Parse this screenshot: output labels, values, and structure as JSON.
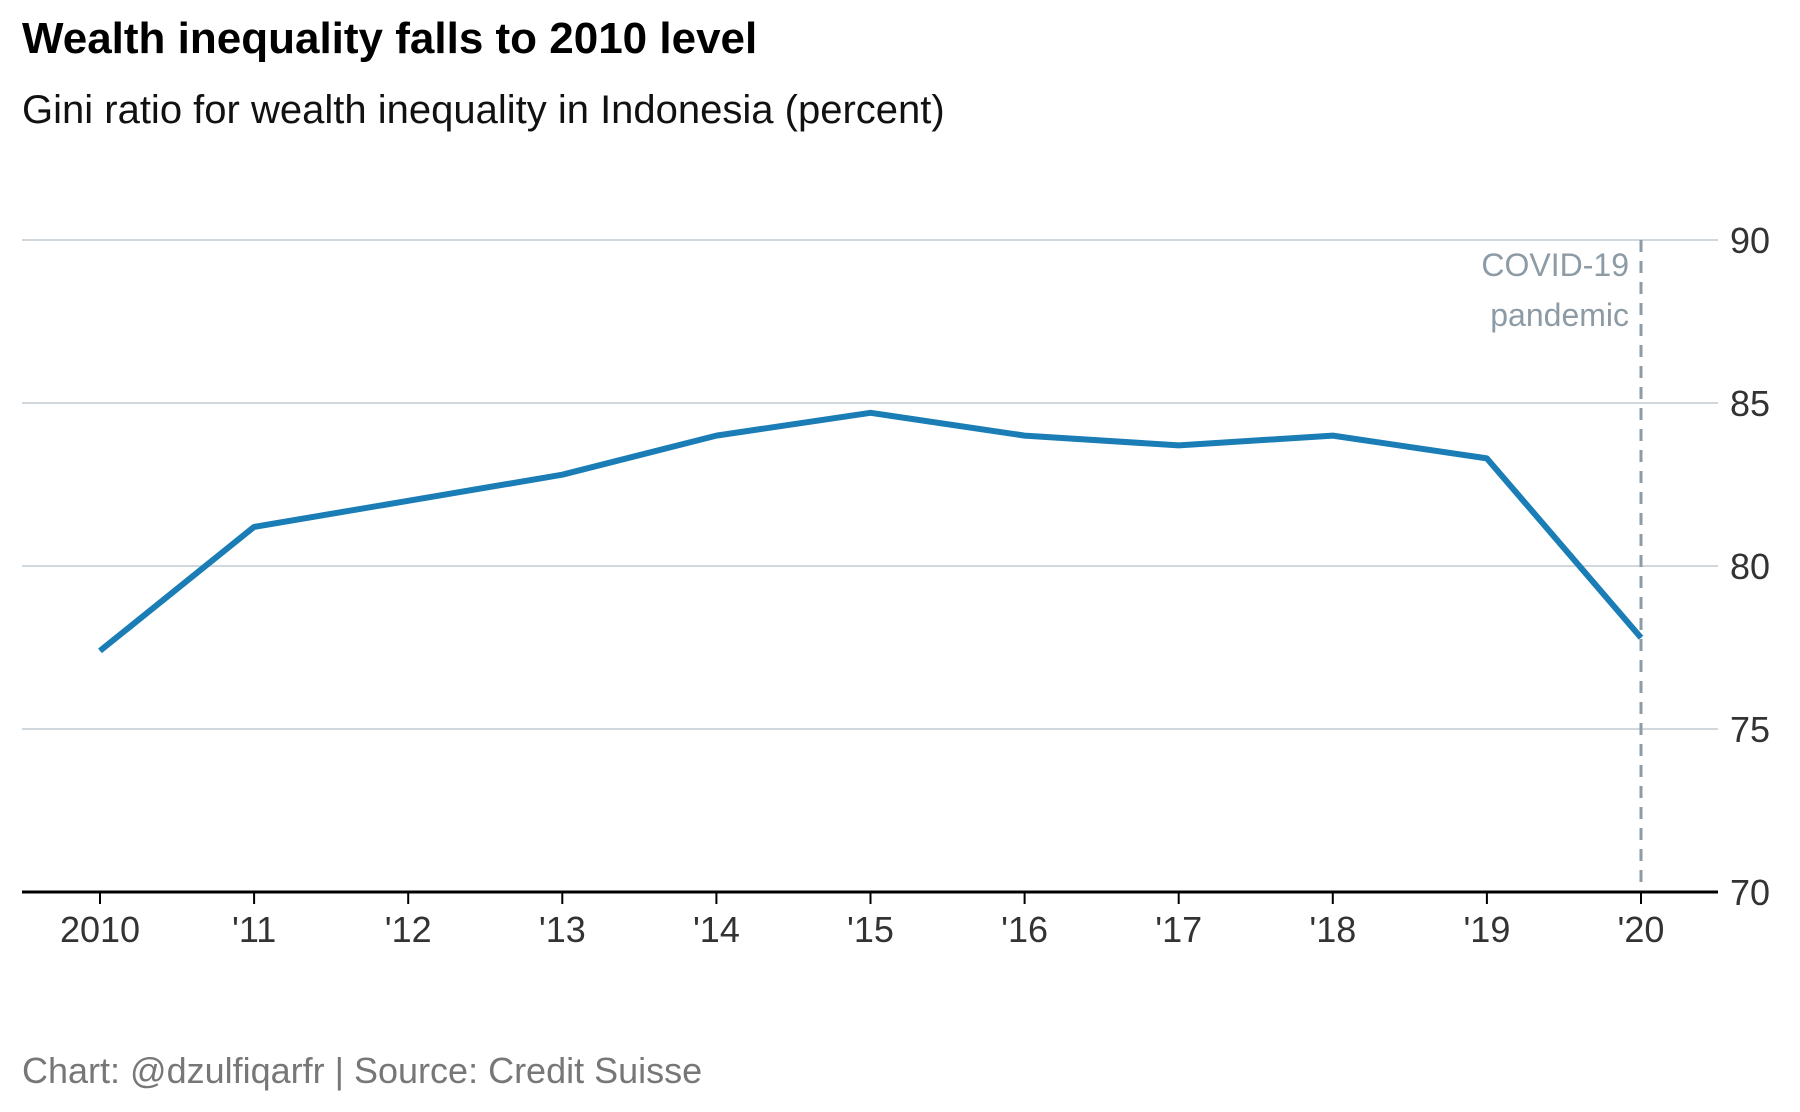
{
  "title": "Wealth inequality falls to 2010 level",
  "subtitle": "Gini ratio for wealth inequality in Indonesia (percent)",
  "caption": "Chart: @dzulfiqarfr | Source: Credit Suisse",
  "colors": {
    "line": "#1a7db6",
    "grid": "#d0d8de",
    "axis": "#000000",
    "tick_text": "#333333",
    "annotation": "#8c9ba5",
    "caption": "#777777"
  },
  "chart_data": {
    "type": "line",
    "title": "Wealth inequality falls to 2010 level",
    "subtitle": "Gini ratio for wealth inequality in Indonesia (percent)",
    "x": [
      2010,
      2011,
      2012,
      2013,
      2014,
      2015,
      2016,
      2017,
      2018,
      2019,
      2020
    ],
    "x_tick_labels": [
      "2010",
      "'11",
      "'12",
      "'13",
      "'14",
      "'15",
      "'16",
      "'17",
      "'18",
      "'19",
      "'20"
    ],
    "series": [
      {
        "values": [
          77.4,
          81.2,
          82.0,
          82.8,
          84.0,
          84.7,
          84.0,
          83.7,
          84.0,
          83.3,
          77.8
        ]
      }
    ],
    "ylim": [
      70,
      90
    ],
    "y_ticks": [
      70,
      75,
      80,
      85,
      90
    ],
    "y_axis_side": "right",
    "grid": true,
    "annotations": [
      {
        "x": 2020,
        "lines": [
          "COVID-19",
          "pandemic"
        ],
        "style": "dashed-vertical-line"
      }
    ]
  }
}
